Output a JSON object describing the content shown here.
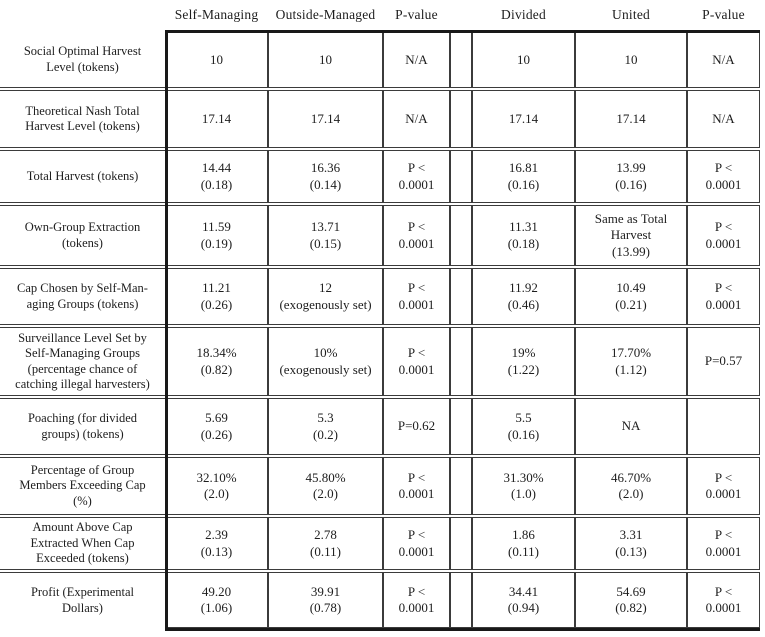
{
  "table": {
    "header": {
      "columns": [
        "Self-Managing",
        "Outside-Managed",
        "P-value",
        "Divided",
        "United",
        "P-value"
      ]
    },
    "rows": [
      {
        "label": "Social Optimal Harvest\nLevel (tokens)",
        "self_managing": "10",
        "outside_managed": "10",
        "p_value_1": "N/A",
        "divided": "10",
        "united": "10",
        "p_value_2": "N/A"
      },
      {
        "label": "Theoretical Nash Total\nHarvest Level (tokens)",
        "self_managing": "17.14",
        "outside_managed": "17.14",
        "p_value_1": "N/A",
        "divided": "17.14",
        "united": "17.14",
        "p_value_2": "N/A"
      },
      {
        "label": "Total Harvest (tokens)",
        "self_managing": "14.44\n(0.18)",
        "outside_managed": "16.36\n(0.14)",
        "p_value_1": "P <\n0.0001",
        "divided": "16.81\n(0.16)",
        "united": "13.99\n(0.16)",
        "p_value_2": "P <\n0.0001"
      },
      {
        "label": "Own-Group Extraction\n(tokens)",
        "self_managing": "11.59\n(0.19)",
        "outside_managed": "13.71\n(0.15)",
        "p_value_1": "P <\n0.0001",
        "divided": "11.31\n(0.18)",
        "united": "Same as Total\nHarvest\n(13.99)",
        "p_value_2": "P <\n0.0001"
      },
      {
        "label": "Cap Chosen by Self-Man-\naging Groups (tokens)",
        "self_managing": "11.21\n(0.26)",
        "outside_managed": "12\n(exogenously set)",
        "p_value_1": "P <\n0.0001",
        "divided": "11.92\n(0.46)",
        "united": "10.49\n(0.21)",
        "p_value_2": "P <\n0.0001"
      },
      {
        "label": "Surveillance Level Set by\nSelf-Managing Groups\n(percentage chance of\ncatching illegal harvesters)",
        "self_managing": "18.34%\n(0.82)",
        "outside_managed": "10%\n(exogenously set)",
        "p_value_1": "P <\n0.0001",
        "divided": "19%\n(1.22)",
        "united": "17.70%\n(1.12)",
        "p_value_2": "P=0.57"
      },
      {
        "label": "Poaching (for divided\ngroups) (tokens)",
        "self_managing": "5.69\n(0.26)",
        "outside_managed": "5.3\n(0.2)",
        "p_value_1": "P=0.62",
        "divided": "5.5\n(0.16)",
        "united": "NA",
        "p_value_2": ""
      },
      {
        "label": "Percentage of Group\nMembers Exceeding Cap\n(%)",
        "self_managing": "32.10%\n(2.0)",
        "outside_managed": "45.80%\n(2.0)",
        "p_value_1": "P <\n0.0001",
        "divided": "31.30%\n(1.0)",
        "united": "46.70%\n(2.0)",
        "p_value_2": "P <\n0.0001"
      },
      {
        "label": "Amount Above Cap\nExtracted When Cap\nExceeded (tokens)",
        "self_managing": "2.39\n(0.13)",
        "outside_managed": "2.78\n(0.11)",
        "p_value_1": "P <\n0.0001",
        "divided": "1.86\n(0.11)",
        "united": "3.31\n(0.13)",
        "p_value_2": "P <\n0.0001"
      },
      {
        "label": "Profit (Experimental\nDollars)",
        "self_managing": "49.20\n(1.06)",
        "outside_managed": "39.91\n(0.78)",
        "p_value_1": "P <\n0.0001",
        "divided": "34.41\n(0.94)",
        "united": "54.69\n(0.82)",
        "p_value_2": "P <\n0.0001"
      }
    ]
  }
}
